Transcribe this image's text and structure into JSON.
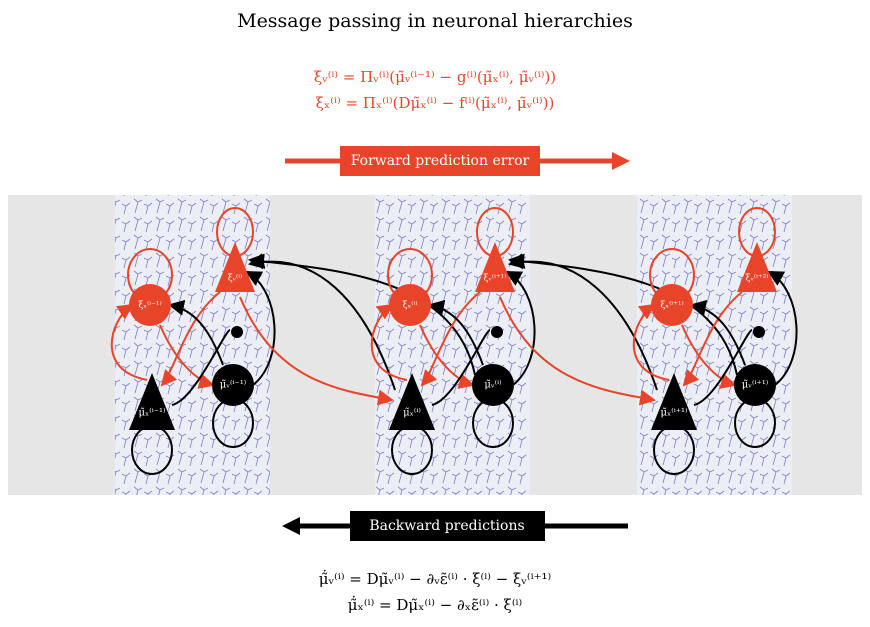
{
  "title": "Message passing in neuronal hierarchies",
  "forward_equations": [
    "ξᵥ⁽ⁱ⁾ = Πᵥ⁽ⁱ⁾(μ̃ᵥ⁽ⁱ⁻¹⁾ − g⁽ⁱ⁾(μ̃ₓ⁽ⁱ⁾, μ̃ᵥ⁽ⁱ⁾))",
    "ξₓ⁽ⁱ⁾ = Πₓ⁽ⁱ⁾(Dμ̃ₓ⁽ⁱ⁾ − f⁽ⁱ⁾(μ̃ₓ⁽ⁱ⁾, μ̃ᵥ⁽ⁱ⁾))"
  ],
  "forward_label": "Forward prediction  error",
  "backward_label": "Backward predictions",
  "backward_equations": [
    "μ̃̇ᵥ⁽ⁱ⁾ = Dμ̃ᵥ⁽ⁱ⁾ − ∂ᵥε̃⁽ⁱ⁾ · ξ⁽ⁱ⁾ − ξᵥ⁽ⁱ⁺¹⁾",
    "μ̃̇ₓ⁽ⁱ⁾ = Dμ̃ₓ⁽ⁱ⁾ − ∂ₓε̃⁽ⁱ⁾ · ξ⁽ⁱ⁾"
  ],
  "columns": [
    {
      "error_state": "ξₓ⁽ⁱ⁻¹⁾",
      "error_cause": "ξᵥ⁽ⁱ⁾",
      "cause": "μ̃ᵥ⁽ⁱ⁻¹⁾",
      "state": "μ̃ₓ⁽ⁱ⁻¹⁾"
    },
    {
      "error_state": "ξₓ⁽ⁱ⁾",
      "error_cause": "ξᵥ⁽ⁱ⁺¹⁾",
      "cause": "μ̃ᵥ⁽ⁱ⁾",
      "state": "μ̃ₓ⁽ⁱ⁾"
    },
    {
      "error_state": "ξₓ⁽ⁱ⁺¹⁾",
      "error_cause": "ξᵥ⁽ⁱ⁺²⁾",
      "cause": "μ̃ᵥ⁽ⁱ⁺¹⁾",
      "state": "μ̃ₓ⁽ⁱ⁺¹⁾"
    }
  ]
}
